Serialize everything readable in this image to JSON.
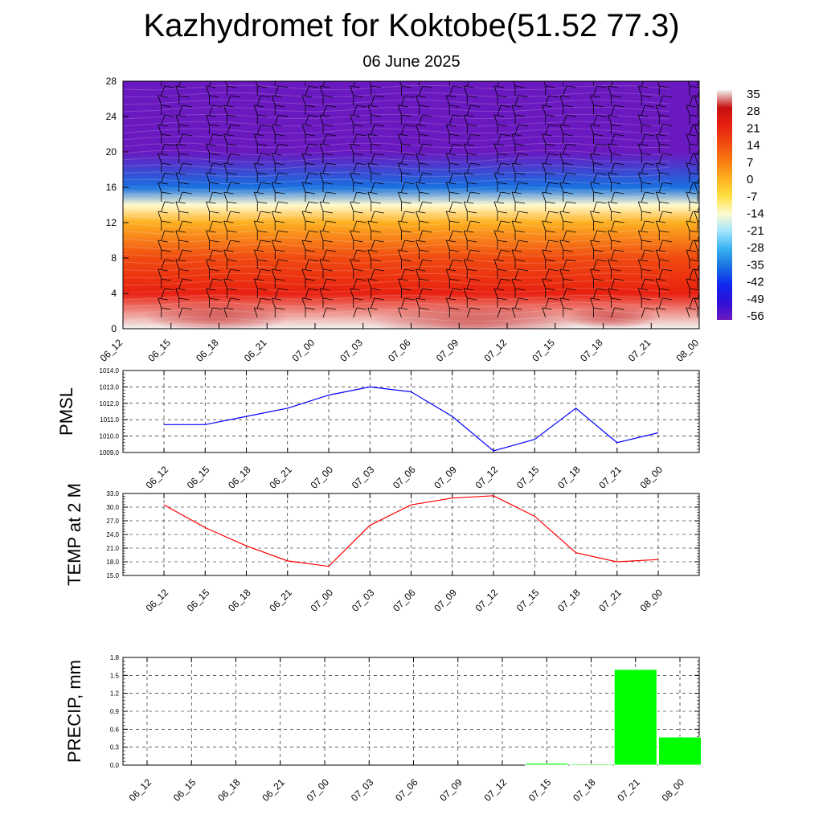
{
  "title": "Kazhydromet for Koktobe(51.52 77.3)",
  "subtitle": "06 June 2025",
  "time_labels": [
    "06_12",
    "06_15",
    "06_18",
    "06_21",
    "07_00",
    "07_03",
    "07_06",
    "07_09",
    "07_12",
    "07_15",
    "07_18",
    "07_21",
    "08_00"
  ],
  "chart_data": [
    {
      "type": "heatmap",
      "name": "temperature cross-section",
      "x": [
        "06_12",
        "06_15",
        "06_18",
        "06_21",
        "07_00",
        "07_03",
        "07_06",
        "07_09",
        "07_12",
        "07_15",
        "07_18",
        "07_21",
        "08_00"
      ],
      "ylim": [
        0,
        28
      ],
      "yticks": [
        0,
        4,
        8,
        12,
        16,
        20,
        24,
        28
      ],
      "levels": [
        0,
        4,
        8,
        12,
        14,
        16,
        20,
        24,
        28
      ],
      "values_by_level": [
        32,
        20,
        8,
        -6,
        -20,
        -40,
        -60,
        -58,
        -56
      ],
      "colorbar": {
        "labels": [
          "35",
          "28",
          "21",
          "14",
          "7",
          "0",
          "-7",
          "-14",
          "-21",
          "-28",
          "-35",
          "-42",
          "-49",
          "-56"
        ],
        "colors": [
          "#f2f2f2",
          "#c81010",
          "#e82010",
          "#f04a10",
          "#f87a10",
          "#fdb020",
          "#ffe040",
          "#fffbd0",
          "#a0e4ff",
          "#38b0ee",
          "#1870e0",
          "#0f28f0",
          "#2e10d8",
          "#6a18c0"
        ]
      },
      "wind_barbs": true
    },
    {
      "type": "line",
      "ylabel": "PMSL",
      "ylim": [
        1009.0,
        1014.0
      ],
      "yticks": [
        "1009.0",
        "1010.0",
        "1011.0",
        "1012.0",
        "1013.0",
        "1014.0"
      ],
      "color": "#0000ff",
      "values": [
        1010.7,
        1010.7,
        1011.2,
        1011.7,
        1012.5,
        1013.0,
        1012.7,
        1011.2,
        1009.1,
        1009.8,
        1011.7,
        1009.6,
        1010.2
      ]
    },
    {
      "type": "line",
      "ylabel": "TEMP at 2 M",
      "ylim": [
        15.0,
        33.0
      ],
      "yticks": [
        "15.0",
        "18.0",
        "21.0",
        "24.0",
        "27.0",
        "30.0",
        "33.0"
      ],
      "color": "#ff0000",
      "values": [
        30.5,
        25.5,
        21.5,
        18.2,
        17.0,
        26.0,
        30.5,
        32.0,
        32.5,
        28.0,
        20.0,
        18.0,
        18.5
      ]
    },
    {
      "type": "bar",
      "ylabel": "PRECIP, mm",
      "ylim": [
        0.0,
        1.8
      ],
      "yticks": [
        "0.0",
        "0.3",
        "0.6",
        "0.9",
        "1.2",
        "1.5",
        "1.8"
      ],
      "color": "#00ff00",
      "values": [
        0,
        0,
        0,
        0,
        0,
        0,
        0,
        0,
        0,
        0.03,
        0.02,
        1.6,
        0.47
      ]
    }
  ]
}
